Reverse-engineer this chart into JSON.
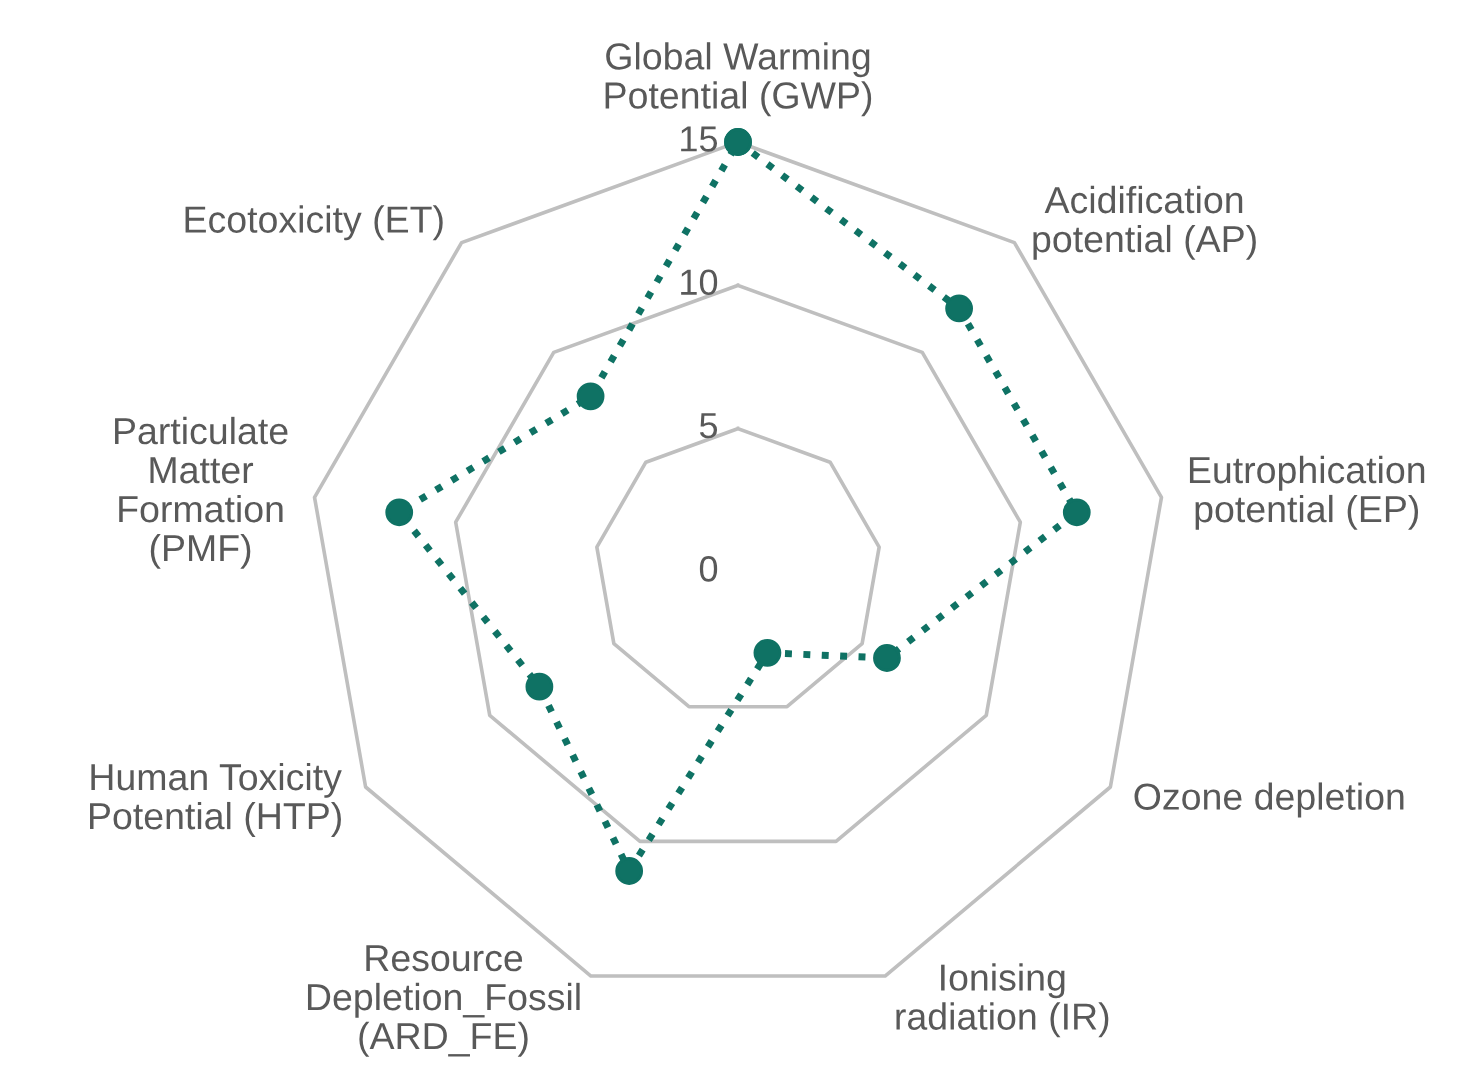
{
  "chart_data": {
    "type": "radar",
    "categories": [
      "Global Warming\nPotential (GWP)",
      "Acidification\npotential (AP)",
      "Eutrophication\npotential (EP)",
      "Ozone depletion",
      "Ionising\nradiation (IR)",
      "Resource\nDepletion_Fossil\n(ARD_FE)",
      "Human Toxicity\nPotential (HTP)",
      "Particulate\nMatter\nFormation\n(PMF)",
      "Ecotoxicity (ET)"
    ],
    "series": [
      {
        "color": "#0f7264",
        "values": [
          15,
          12,
          12,
          6,
          3,
          11.1,
          8,
          12,
          8
        ]
      }
    ],
    "ylim": [
      0,
      15
    ],
    "yticks": [
      0,
      5,
      10,
      15
    ],
    "grid": true,
    "marker": "circle",
    "line_style": "dotted"
  }
}
